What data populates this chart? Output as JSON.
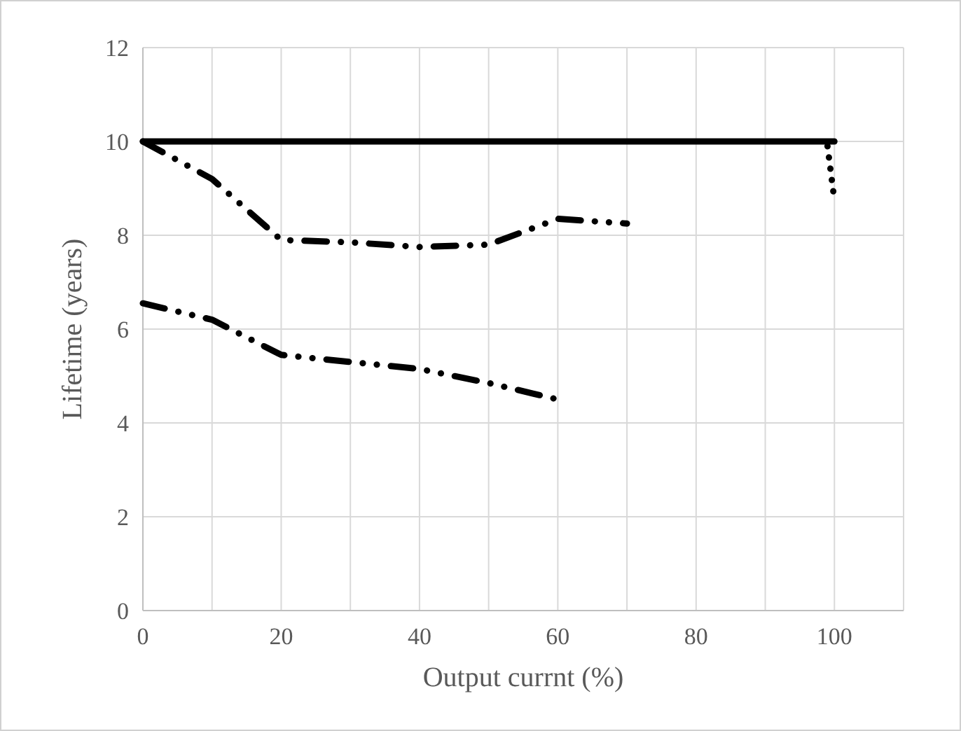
{
  "chart_data": {
    "type": "line",
    "xlabel": "Output currnt (%)",
    "ylabel": "Lifetime (years)",
    "xlim": [
      0,
      110
    ],
    "xticks": [
      0,
      {
        "value": 10,
        "label": null
      },
      20,
      {
        "value": 30,
        "label": null
      },
      40,
      {
        "value": 50,
        "label": null
      },
      60,
      {
        "value": 70,
        "label": null
      },
      80,
      {
        "value": 90,
        "label": null
      },
      100,
      {
        "value": 110,
        "label": null
      }
    ],
    "ylim": [
      0,
      12
    ],
    "yticks": [
      0,
      2,
      4,
      6,
      8,
      10,
      12
    ],
    "grid": true,
    "marker": "none",
    "series": [
      {
        "color": "#000000",
        "line_style": "solid",
        "x": [
          0,
          100
        ],
        "values": [
          10,
          10
        ]
      },
      {
        "color": "#000000",
        "line_style": "dotted",
        "x": [
          99,
          100
        ],
        "values": [
          9.9,
          8.75
        ]
      },
      {
        "color": "#000000",
        "line_style": "dashed",
        "x": [
          0,
          10,
          20,
          30,
          40,
          50,
          60,
          70
        ],
        "values": [
          10,
          9.2,
          7.9,
          7.85,
          7.75,
          7.8,
          8.35,
          8.25
        ]
      },
      {
        "color": "#000000",
        "line_style": "dashed",
        "x": [
          0,
          10,
          20,
          30,
          40,
          50,
          60
        ],
        "values": [
          6.55,
          6.2,
          5.45,
          5.3,
          5.15,
          4.85,
          4.5
        ]
      }
    ]
  }
}
